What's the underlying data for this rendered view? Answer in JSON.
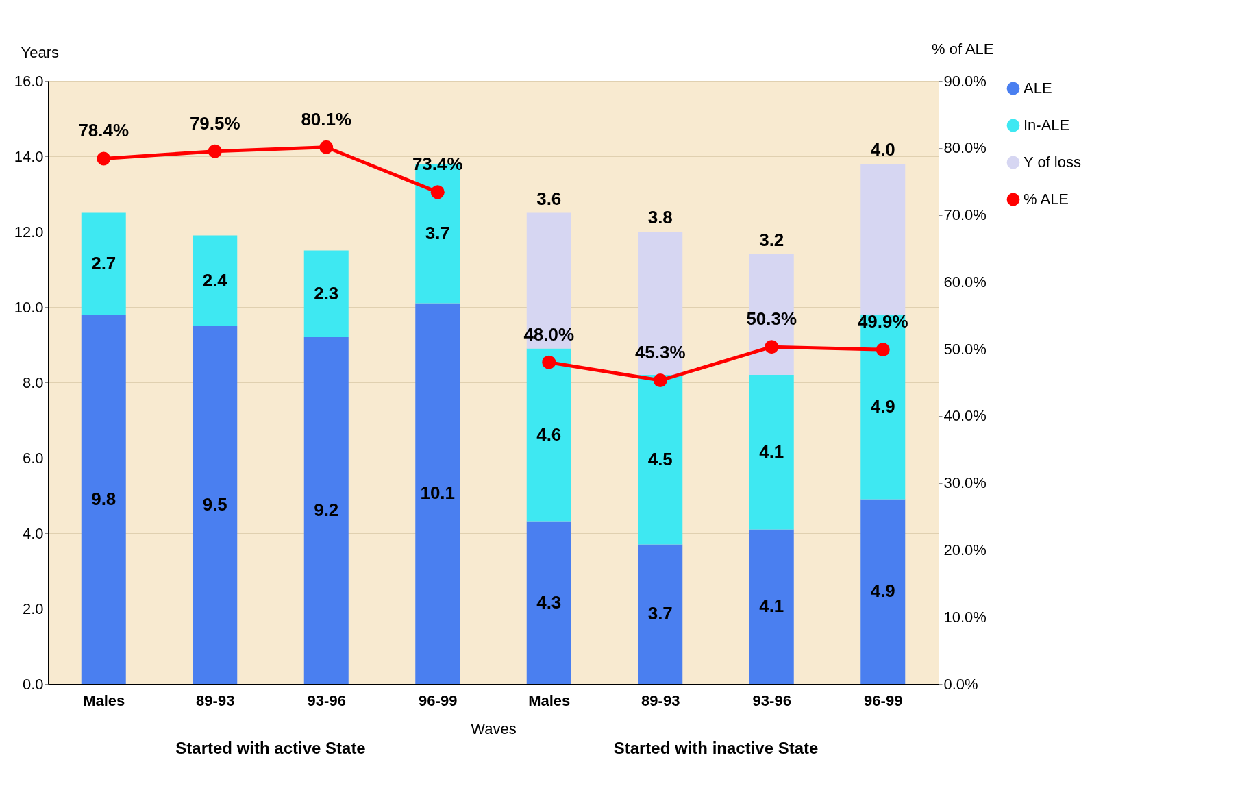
{
  "chart_data": {
    "type": "bar",
    "stacked": true,
    "xlabel": "Waves",
    "ylabel": "Years",
    "y2label": "% of ALE",
    "categories": [
      "Males",
      "89-93",
      "93-96",
      "96-99",
      "Males",
      "89-93",
      "93-96",
      "96-99"
    ],
    "series": [
      {
        "name": "ALE",
        "color": "#4a7ff0",
        "values": [
          9.8,
          9.5,
          9.2,
          10.1,
          4.3,
          3.7,
          4.1,
          4.9
        ]
      },
      {
        "name": "In-ALE",
        "color": "#3ee8f2",
        "values": [
          2.7,
          2.4,
          2.3,
          3.7,
          4.6,
          4.5,
          4.1,
          4.9
        ]
      },
      {
        "name": "Y of loss",
        "color": "#d6d6f2",
        "values": [
          null,
          null,
          null,
          null,
          3.6,
          3.8,
          3.2,
          4.0
        ],
        "value_labels": [
          null,
          null,
          null,
          null,
          "3.6",
          "3.8",
          "3.2",
          "4.0"
        ]
      },
      {
        "name": "% ALE",
        "color": "#ff0000",
        "type": "line",
        "axis": "y2",
        "values": [
          78.4,
          79.5,
          80.1,
          73.4,
          48.0,
          45.3,
          50.3,
          49.9
        ],
        "value_labels": [
          "78.4%",
          "79.5%",
          "80.1%",
          "73.4%",
          "48.0%",
          "45.3%",
          "50.3%",
          "49.9%"
        ]
      }
    ],
    "ylim": [
      0,
      16
    ],
    "yticks": [
      {
        "value": 0,
        "label": "0.0"
      },
      {
        "value": 2,
        "label": "2.0"
      },
      {
        "value": 4,
        "label": "4.0"
      },
      {
        "value": 6,
        "label": "6.0"
      },
      {
        "value": 8,
        "label": "8.0"
      },
      {
        "value": 10,
        "label": "10.0"
      },
      {
        "value": 12,
        "label": "12.0"
      },
      {
        "value": 14,
        "label": "14.0"
      },
      {
        "value": 16,
        "label": "16.0"
      }
    ],
    "y2lim": [
      0,
      90
    ],
    "y2ticks": [
      {
        "value": 0,
        "label": "0.0%"
      },
      {
        "value": 10,
        "label": "10.0%"
      },
      {
        "value": 20,
        "label": "20.0%"
      },
      {
        "value": 30,
        "label": "30.0%"
      },
      {
        "value": 40,
        "label": "40.0%"
      },
      {
        "value": 50,
        "label": "50.0%"
      },
      {
        "value": 60,
        "label": "60.0%"
      },
      {
        "value": 70,
        "label": "70.0%"
      },
      {
        "value": 80,
        "label": "80.0%"
      },
      {
        "value": 90,
        "label": "90.0%"
      }
    ],
    "data_labels": true,
    "marker": "circle",
    "grid": "y",
    "legend": "right",
    "annotations": [
      "Started with active State",
      "Started with inactive State"
    ]
  }
}
